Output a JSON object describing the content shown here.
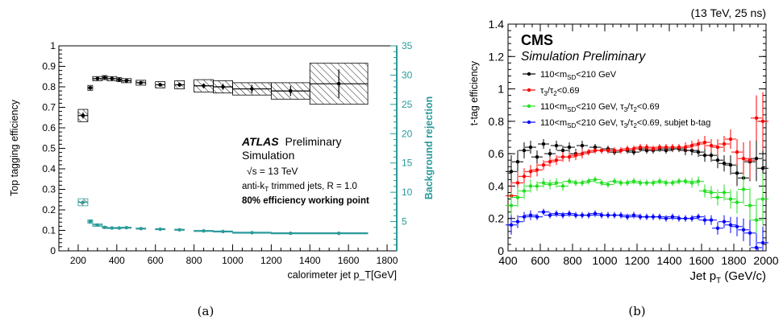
{
  "chart_data": [
    {
      "type": "scatter",
      "panel": "(a)",
      "xlabel": "calorimeter jet p_T[GeV]",
      "ylabel": "Top tagging efficiency",
      "y2label": "Background rejection",
      "xlim": [
        100,
        1850
      ],
      "ylim": [
        0,
        1
      ],
      "y2lim": [
        0,
        35
      ],
      "xticks": [
        "200",
        "400",
        "600",
        "800",
        "1000",
        "1200",
        "1400",
        "1600",
        "1800"
      ],
      "yticks": [
        "0",
        "0.1",
        "0.2",
        "0.3",
        "0.4",
        "0.5",
        "0.6",
        "0.7",
        "0.8",
        "0.9",
        "1"
      ],
      "y2ticks": [
        "5",
        "10",
        "15",
        "20",
        "25",
        "30",
        "35"
      ],
      "grid": false,
      "annotations": {
        "atlas": "ATLAS",
        "preliminary": "Preliminary",
        "simulation": "Simulation",
        "sqrt_s_prefix": "√s",
        "sqrt_s_suffix": " = 13 TeV",
        "jets_prefix": "anti-k",
        "jets_sub": "T",
        "jets_suffix": " trimmed jets, R = 1.0",
        "wp": "80% efficiency working point"
      },
      "colors": {
        "efficiency": "#000000",
        "rejection": "#2a9a9a"
      },
      "series": [
        {
          "role": "efficiency",
          "x": [
            225,
            262.5,
            300,
            337.5,
            375,
            412.5,
            450,
            525,
            625,
            725,
            850,
            950,
            1100,
            1300,
            1550
          ],
          "xlo": [
            200,
            250,
            275,
            325,
            350,
            400,
            425,
            500,
            600,
            700,
            800,
            900,
            1000,
            1200,
            1400
          ],
          "xhi": [
            250,
            275,
            325,
            350,
            400,
            425,
            475,
            550,
            650,
            750,
            900,
            1000,
            1200,
            1400,
            1700
          ],
          "y": [
            0.66,
            0.795,
            0.84,
            0.845,
            0.84,
            0.835,
            0.83,
            0.82,
            0.81,
            0.81,
            0.805,
            0.8,
            0.79,
            0.78,
            0.815
          ],
          "ysys": [
            0.03,
            0.012,
            0.01,
            0.01,
            0.01,
            0.01,
            0.01,
            0.012,
            0.015,
            0.02,
            0.03,
            0.03,
            0.03,
            0.04,
            0.1
          ],
          "ystat": [
            0.015,
            0.008,
            0.005,
            0.005,
            0.005,
            0.005,
            0.005,
            0.006,
            0.008,
            0.01,
            0.012,
            0.015,
            0.02,
            0.025,
            0.07
          ]
        },
        {
          "role": "rejection",
          "x": [
            225,
            262.5,
            300,
            337.5,
            375,
            412.5,
            450,
            525,
            625,
            725,
            850,
            950,
            1100,
            1300,
            1550
          ],
          "xlo": [
            200,
            250,
            275,
            325,
            350,
            400,
            425,
            500,
            600,
            700,
            800,
            900,
            1000,
            1200,
            1400
          ],
          "xhi": [
            250,
            275,
            325,
            350,
            400,
            425,
            475,
            550,
            650,
            750,
            900,
            1000,
            1200,
            1400,
            1700
          ],
          "y": [
            8.3,
            5.0,
            4.4,
            4.0,
            3.9,
            3.9,
            3.95,
            3.8,
            3.7,
            3.6,
            3.4,
            3.3,
            3.1,
            3.0,
            3.0
          ],
          "ysys": [
            0.6,
            0.3,
            0.2,
            0.15,
            0.1,
            0.1,
            0.1,
            0.1,
            0.1,
            0.1,
            0.1,
            0.1,
            0.1,
            0.1,
            0.1
          ]
        }
      ]
    },
    {
      "type": "scatter",
      "panel": "(b)",
      "header": "(13 TeV, 25 ns)",
      "xlabel_prefix": "Jet p",
      "xlabel_sub": "T",
      "xlabel_suffix": " (GeV/c)",
      "ylabel": "t-tag efficiency",
      "xlim": [
        400,
        2000
      ],
      "ylim": [
        0,
        1.4
      ],
      "xticks": [
        "400",
        "600",
        "800",
        "1000",
        "1200",
        "1400",
        "1600",
        "1800",
        "2000"
      ],
      "yticks": [
        "0",
        "0.2",
        "0.4",
        "0.6",
        "0.8",
        "1",
        "1.2",
        "1.4"
      ],
      "grid": false,
      "annotations": {
        "cms": "CMS",
        "simulation": "Simulation Preliminary"
      },
      "legend_placement": "top-left",
      "colors": {
        "black": "#000000",
        "red": "#ff0000",
        "green": "#22e022",
        "blue": "#0000ff"
      },
      "series": [
        {
          "name": "110<m_SD<210 GeV",
          "color": "#000000",
          "x": [
            420,
            460,
            500,
            540,
            580,
            620,
            660,
            700,
            740,
            780,
            820,
            860,
            900,
            940,
            980,
            1020,
            1060,
            1100,
            1140,
            1180,
            1220,
            1260,
            1300,
            1340,
            1380,
            1420,
            1460,
            1500,
            1540,
            1580,
            1620,
            1660,
            1700,
            1740,
            1780,
            1820,
            1860,
            1900,
            1940,
            1980
          ],
          "y": [
            0.49,
            0.55,
            0.62,
            0.64,
            0.58,
            0.66,
            0.6,
            0.65,
            0.62,
            0.64,
            0.6,
            0.65,
            0.61,
            0.64,
            0.62,
            0.63,
            0.61,
            0.62,
            0.62,
            0.61,
            0.63,
            0.62,
            0.62,
            0.63,
            0.62,
            0.63,
            0.63,
            0.62,
            0.62,
            0.61,
            0.59,
            0.59,
            0.56,
            0.54,
            0.53,
            0.48,
            0.45,
            0.55,
            0.57,
            0.51
          ],
          "yerr": [
            0.1,
            0.07,
            0.05,
            0.04,
            0.04,
            0.03,
            0.03,
            0.03,
            0.03,
            0.03,
            0.03,
            0.03,
            0.02,
            0.02,
            0.02,
            0.02,
            0.02,
            0.02,
            0.02,
            0.02,
            0.02,
            0.02,
            0.02,
            0.02,
            0.02,
            0.02,
            0.02,
            0.03,
            0.03,
            0.03,
            0.04,
            0.04,
            0.05,
            0.05,
            0.06,
            0.08,
            0.1,
            0.12,
            0.14,
            0.18
          ]
        },
        {
          "name": "τ3/τ2<0.69",
          "color": "#ff0000",
          "x": [
            420,
            460,
            500,
            540,
            580,
            620,
            660,
            700,
            740,
            780,
            820,
            860,
            900,
            940,
            980,
            1020,
            1060,
            1100,
            1140,
            1180,
            1220,
            1260,
            1300,
            1340,
            1380,
            1420,
            1460,
            1500,
            1540,
            1580,
            1620,
            1660,
            1700,
            1740,
            1780,
            1820,
            1860,
            1900,
            1940,
            1980
          ],
          "y": [
            0.34,
            0.42,
            0.46,
            0.49,
            0.5,
            0.53,
            0.55,
            0.56,
            0.58,
            0.58,
            0.59,
            0.6,
            0.61,
            0.62,
            0.62,
            0.62,
            0.62,
            0.62,
            0.63,
            0.63,
            0.64,
            0.64,
            0.63,
            0.64,
            0.64,
            0.64,
            0.64,
            0.64,
            0.65,
            0.66,
            0.67,
            0.65,
            0.64,
            0.66,
            0.69,
            0.61,
            0.57,
            0.56,
            0.82,
            0.8
          ],
          "yerr": [
            0.08,
            0.07,
            0.05,
            0.04,
            0.04,
            0.03,
            0.03,
            0.03,
            0.03,
            0.03,
            0.03,
            0.03,
            0.02,
            0.02,
            0.02,
            0.02,
            0.02,
            0.02,
            0.02,
            0.02,
            0.02,
            0.02,
            0.02,
            0.02,
            0.02,
            0.02,
            0.02,
            0.03,
            0.03,
            0.03,
            0.04,
            0.04,
            0.05,
            0.05,
            0.06,
            0.08,
            0.1,
            0.12,
            0.14,
            0.18
          ]
        },
        {
          "name": "110<m_SD<210 GeV, τ3/τ2<0.69",
          "color": "#22e022",
          "x": [
            420,
            460,
            500,
            540,
            580,
            620,
            660,
            700,
            740,
            780,
            820,
            860,
            900,
            940,
            980,
            1020,
            1060,
            1100,
            1140,
            1180,
            1220,
            1260,
            1300,
            1340,
            1380,
            1420,
            1460,
            1500,
            1540,
            1580,
            1620,
            1660,
            1700,
            1740,
            1780,
            1820,
            1860,
            1900,
            1940,
            1980
          ],
          "y": [
            0.28,
            0.33,
            0.37,
            0.4,
            0.4,
            0.42,
            0.41,
            0.42,
            0.4,
            0.43,
            0.42,
            0.42,
            0.43,
            0.44,
            0.42,
            0.41,
            0.43,
            0.42,
            0.42,
            0.43,
            0.42,
            0.42,
            0.42,
            0.43,
            0.42,
            0.42,
            0.43,
            0.43,
            0.42,
            0.43,
            0.37,
            0.36,
            0.33,
            0.36,
            0.32,
            0.3,
            0.38,
            0.28,
            0.19,
            0.32
          ],
          "yerr": [
            0.08,
            0.06,
            0.05,
            0.04,
            0.03,
            0.03,
            0.03,
            0.03,
            0.03,
            0.02,
            0.02,
            0.02,
            0.02,
            0.02,
            0.02,
            0.02,
            0.02,
            0.02,
            0.02,
            0.02,
            0.02,
            0.02,
            0.02,
            0.02,
            0.02,
            0.02,
            0.02,
            0.02,
            0.03,
            0.03,
            0.04,
            0.04,
            0.05,
            0.05,
            0.06,
            0.07,
            0.09,
            0.11,
            0.13,
            0.16
          ]
        },
        {
          "name": "110<m_SD<210 GeV, τ3/τ2<0.69, subjet b-tag",
          "color": "#0000ff",
          "x": [
            420,
            460,
            500,
            540,
            580,
            620,
            660,
            700,
            740,
            780,
            820,
            860,
            900,
            940,
            980,
            1020,
            1060,
            1100,
            1140,
            1180,
            1220,
            1260,
            1300,
            1340,
            1380,
            1420,
            1460,
            1500,
            1540,
            1580,
            1620,
            1660,
            1700,
            1740,
            1780,
            1820,
            1860,
            1900,
            1940,
            1980
          ],
          "y": [
            0.16,
            0.18,
            0.21,
            0.22,
            0.21,
            0.24,
            0.22,
            0.23,
            0.22,
            0.23,
            0.22,
            0.22,
            0.22,
            0.23,
            0.22,
            0.22,
            0.22,
            0.22,
            0.21,
            0.22,
            0.21,
            0.21,
            0.21,
            0.21,
            0.2,
            0.21,
            0.2,
            0.2,
            0.2,
            0.21,
            0.19,
            0.19,
            0.14,
            0.18,
            0.16,
            0.15,
            0.13,
            0.11,
            0.02,
            0.05
          ],
          "yerr": [
            0.06,
            0.04,
            0.03,
            0.03,
            0.02,
            0.02,
            0.02,
            0.02,
            0.02,
            0.02,
            0.02,
            0.02,
            0.02,
            0.02,
            0.02,
            0.02,
            0.02,
            0.02,
            0.02,
            0.02,
            0.02,
            0.02,
            0.02,
            0.02,
            0.02,
            0.02,
            0.02,
            0.02,
            0.02,
            0.02,
            0.03,
            0.03,
            0.04,
            0.04,
            0.05,
            0.06,
            0.07,
            0.08,
            0.09,
            0.1
          ]
        }
      ]
    }
  ],
  "captions": {
    "a": "(a)",
    "b": "(b)"
  }
}
